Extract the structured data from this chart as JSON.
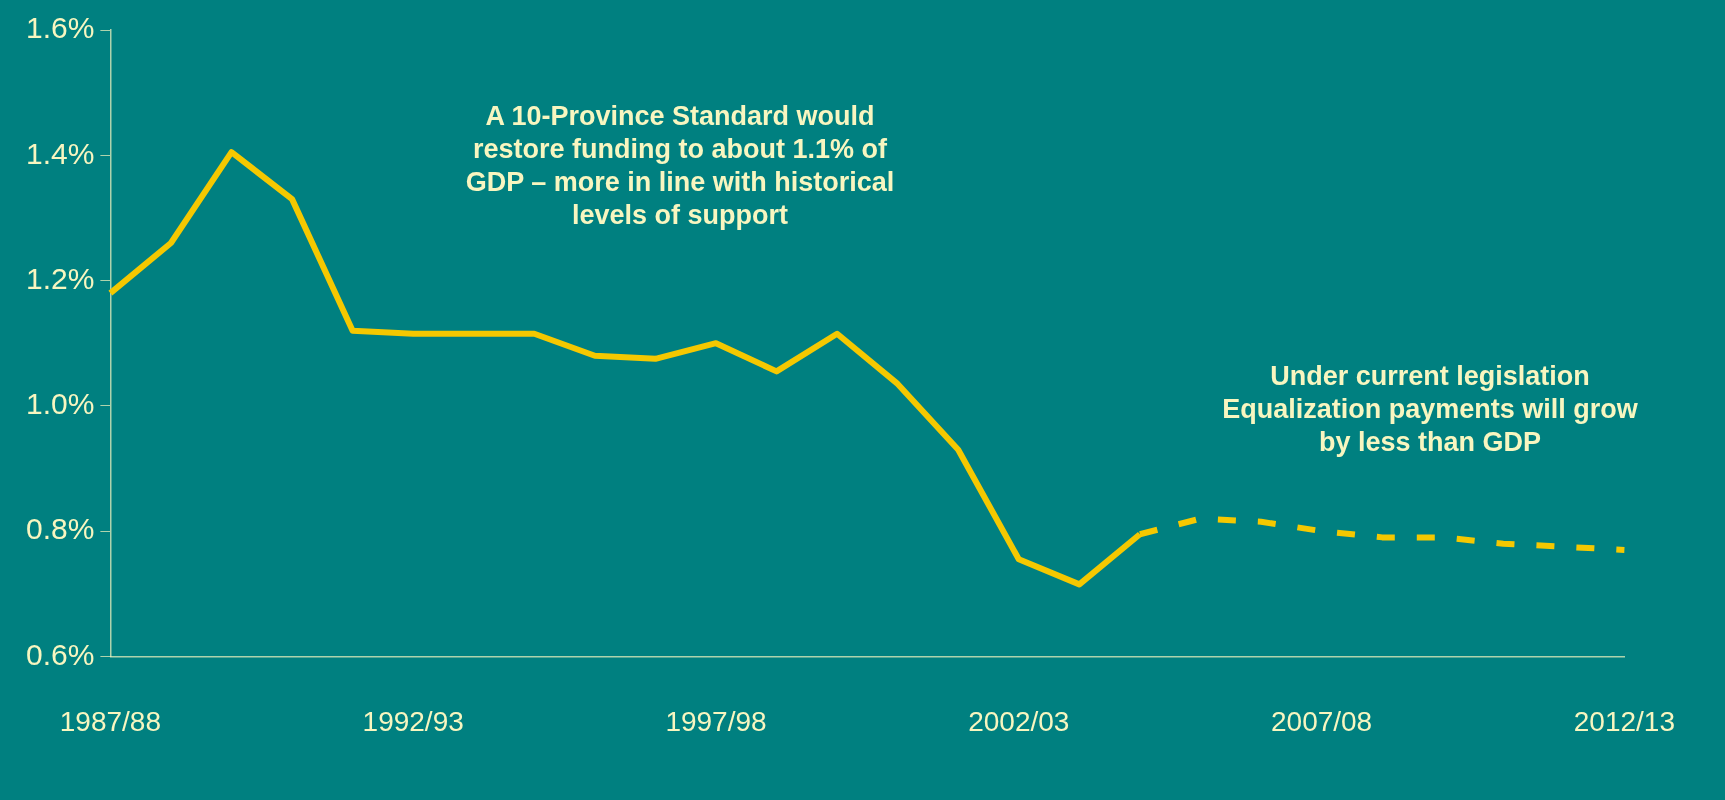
{
  "chart_data": {
    "type": "line",
    "categories": [
      "1987/88",
      null,
      null,
      null,
      null,
      "1992/93",
      null,
      null,
      null,
      null,
      "1997/98",
      null,
      null,
      null,
      null,
      "2002/03",
      null,
      null,
      null,
      null,
      "2007/08",
      null,
      null,
      null,
      null,
      "2012/13"
    ],
    "series": [
      {
        "color": "#f5c800",
        "line_style": "solid",
        "values": [
          1.18,
          1.26,
          1.405,
          1.33,
          1.12,
          1.115,
          1.115,
          1.115,
          1.08,
          1.075,
          1.1,
          1.055,
          1.115,
          1.035,
          0.93,
          0.755,
          0.715,
          0.795,
          null,
          null,
          null,
          null,
          null,
          null,
          null,
          null
        ]
      },
      {
        "color": "#f5c800",
        "line_style": "dashed",
        "values": [
          null,
          null,
          null,
          null,
          null,
          null,
          null,
          null,
          null,
          null,
          null,
          null,
          null,
          null,
          null,
          null,
          null,
          0.795,
          0.82,
          0.815,
          0.8,
          0.79,
          0.79,
          0.78,
          0.775,
          0.77
        ]
      }
    ],
    "ylim": [
      0.6,
      1.6
    ],
    "yticks": [
      {
        "value": 0.6,
        "label": "0.6%"
      },
      {
        "value": 0.8,
        "label": "0.8%"
      },
      {
        "value": 1.0,
        "label": "1.0%"
      },
      {
        "value": 1.2,
        "label": "1.2%"
      },
      {
        "value": 1.4,
        "label": "1.4%"
      },
      {
        "value": 1.6,
        "label": "1.6%"
      }
    ],
    "grid": false,
    "legend": false,
    "marker": "none",
    "annotations": [
      "A 10-Province Standard would restore funding to about 1.1% of GDP – more in line with historical levels of support",
      "Under current legislation Equalization payments will grow by less than GDP"
    ]
  }
}
